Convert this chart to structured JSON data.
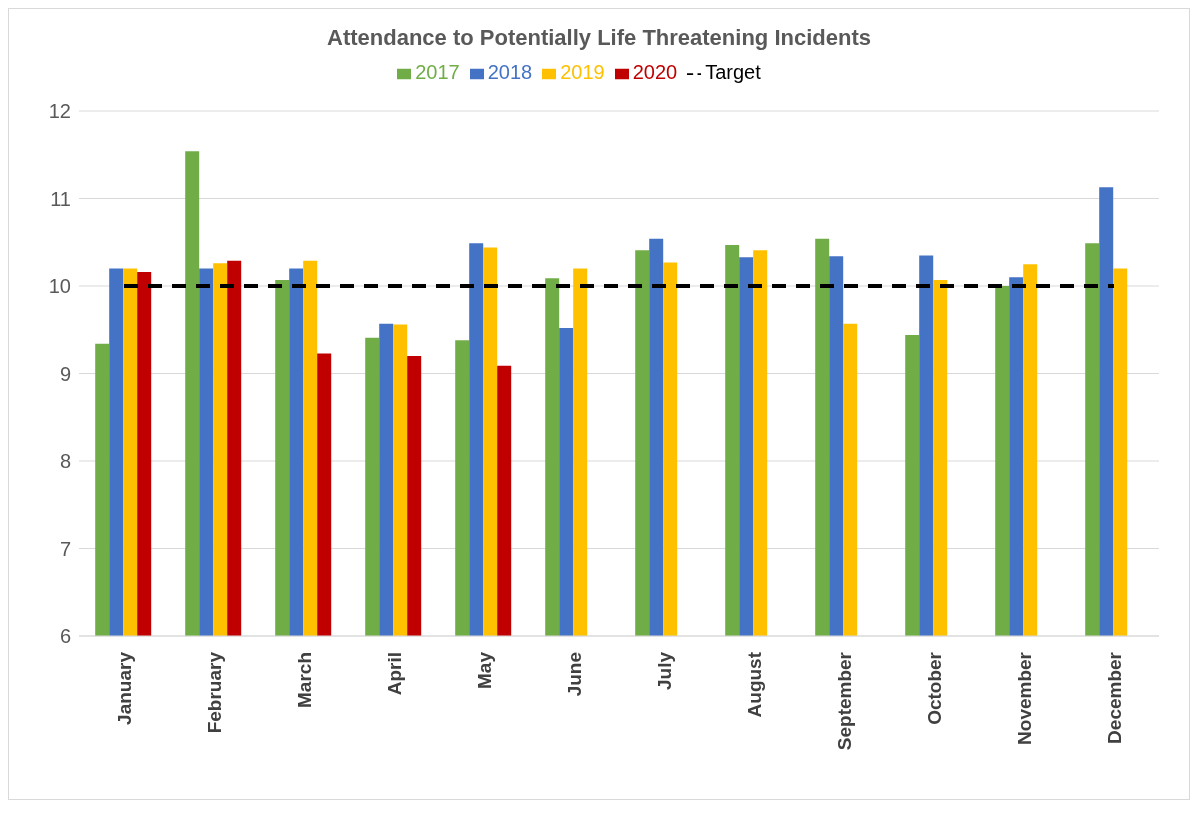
{
  "chart_data": {
    "type": "bar",
    "title": "Attendance to Potentially Life Threatening Incidents",
    "categories": [
      "January",
      "February",
      "March",
      "April",
      "May",
      "June",
      "July",
      "August",
      "September",
      "October",
      "November",
      "December"
    ],
    "series": [
      {
        "name": "2017",
        "color": "#70ad47",
        "values": [
          9.34,
          11.54,
          10.07,
          9.41,
          9.38,
          10.09,
          10.41,
          10.47,
          10.54,
          9.44,
          10.0,
          10.49
        ]
      },
      {
        "name": "2018",
        "color": "#4472c4",
        "values": [
          10.2,
          10.2,
          10.2,
          9.57,
          10.49,
          9.52,
          10.54,
          10.33,
          10.34,
          10.35,
          10.1,
          11.13
        ]
      },
      {
        "name": "2019",
        "color": "#ffc000",
        "values": [
          10.2,
          10.26,
          10.29,
          9.56,
          10.44,
          10.2,
          10.27,
          10.41,
          9.57,
          10.07,
          10.25,
          10.2
        ]
      },
      {
        "name": "2020",
        "color": "#c00000",
        "values": [
          10.16,
          10.29,
          9.23,
          9.2,
          9.09,
          null,
          null,
          null,
          null,
          null,
          null,
          null
        ]
      },
      {
        "name": "Target",
        "type": "line",
        "line_style": "dashed",
        "color": "#000000",
        "values": [
          10,
          10,
          10,
          10,
          10,
          10,
          10,
          10,
          10,
          10,
          10,
          10
        ]
      }
    ],
    "ylim": [
      6,
      12
    ],
    "yticks": [
      6,
      7,
      8,
      9,
      10,
      11,
      12
    ],
    "grid": "y",
    "legend": "top"
  }
}
